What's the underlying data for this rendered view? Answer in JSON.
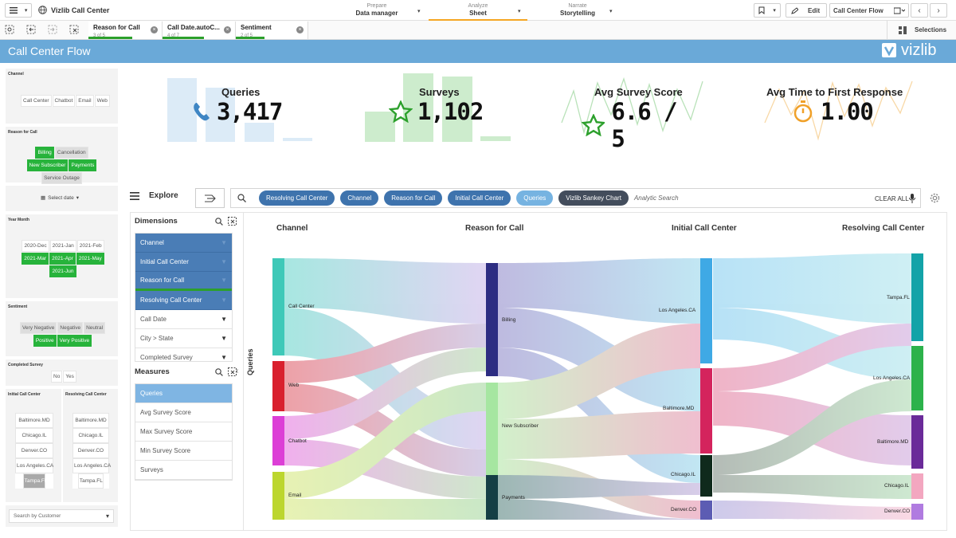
{
  "topbar": {
    "app_title": "Vizlib Call Center",
    "steps": [
      {
        "top": "Prepare",
        "label": "Data manager"
      },
      {
        "top": "Analyze",
        "label": "Sheet"
      },
      {
        "top": "Narrate",
        "label": "Storytelling"
      }
    ],
    "edit_label": "Edit",
    "sheet_name": "Call Center Flow",
    "selections_label": "Selections"
  },
  "selections": [
    {
      "field": "Reason for Call",
      "count": "3 of 5"
    },
    {
      "field": "Call Date.autoC...",
      "count": "4 of 7"
    },
    {
      "field": "Sentiment",
      "count": "2 of 5"
    }
  ],
  "header": {
    "title": "Call Center Flow",
    "logo": "vizlib"
  },
  "filters": {
    "channel": {
      "title": "Channel",
      "items": [
        "Call Center",
        "Chatbot",
        "Email",
        "Web"
      ]
    },
    "reason": {
      "title": "Reason for Call",
      "items": [
        "Billing",
        "Cancellation",
        "New Subscriber",
        "Payments",
        "Service Outage"
      ]
    },
    "date": {
      "label": "Select date"
    },
    "year_month": {
      "title": "Year Month",
      "items": [
        "2020-Dec",
        "2021-Jan",
        "2021-Feb",
        "2021-Mar",
        "2021-Apr",
        "2021-May",
        "2021-Jun"
      ]
    },
    "sentiment": {
      "title": "Sentiment",
      "items": [
        "Very Negative",
        "Negative",
        "Neutral",
        "Positive",
        "Very Positive"
      ]
    },
    "completed": {
      "title": "Completed Survey",
      "items": [
        "No",
        "Yes"
      ]
    },
    "initial_cc": {
      "title": "Initial Call Center",
      "items": [
        "Baltimore.MD",
        "Chicago.IL",
        "Denver.CO",
        "Los Angeles.CA",
        "Tampa.FL"
      ]
    },
    "resolving_cc": {
      "title": "Resolving Call Center",
      "items": [
        "Baltimore.MD",
        "Chicago.IL",
        "Denver.CO",
        "Los Angeles.CA",
        "Tampa.FL"
      ]
    },
    "customer": {
      "placeholder": "Search by Customer"
    }
  },
  "kpis": [
    {
      "title": "Queries",
      "value": "3,417",
      "icon": "phone-icon"
    },
    {
      "title": "Surveys",
      "value": "1,102",
      "icon": "star-icon"
    },
    {
      "title": "Avg Survey Score",
      "value": "6.6 / 5",
      "icon": "star-icon"
    },
    {
      "title": "Avg Time to First Response",
      "value": "1.00",
      "icon": "stopwatch-icon"
    }
  ],
  "explore": {
    "label": "Explore",
    "pills": [
      "Resolving Call Center",
      "Channel",
      "Reason for Call",
      "Initial Call Center",
      "Queries",
      "Vizlib Sankey Chart"
    ],
    "search_placeholder": "Analytic Search",
    "clear_all": "CLEAR ALL"
  },
  "dimensions": {
    "title": "Dimensions",
    "items": [
      "Channel",
      "Initial Call Center",
      "Reason for Call",
      "Resolving Call Center",
      "Call Date",
      "City > State",
      "Completed Survey"
    ]
  },
  "measures": {
    "title": "Measures",
    "items": [
      "Queries",
      "Avg Survey Score",
      "Max Survey Score",
      "Min Survey Score",
      "Surveys"
    ]
  },
  "sankey": {
    "y_axis": "Queries",
    "columns": [
      "Channel",
      "Reason for Call",
      "Initial Call Center",
      "Resolving Call Center"
    ],
    "nodes": {
      "channel": [
        "Call Center",
        "Web",
        "Chatbot",
        "Email"
      ],
      "reason": [
        "Billing",
        "New Subscriber",
        "Payments"
      ],
      "initial": [
        "Los Angeles.CA",
        "Baltimore.MD",
        "Chicago.IL",
        "Denver.CO"
      ],
      "resolving": [
        "Tampa.FL",
        "Los Angeles.CA",
        "Baltimore.MD",
        "Chicago.IL",
        "Denver.CO"
      ]
    }
  }
}
